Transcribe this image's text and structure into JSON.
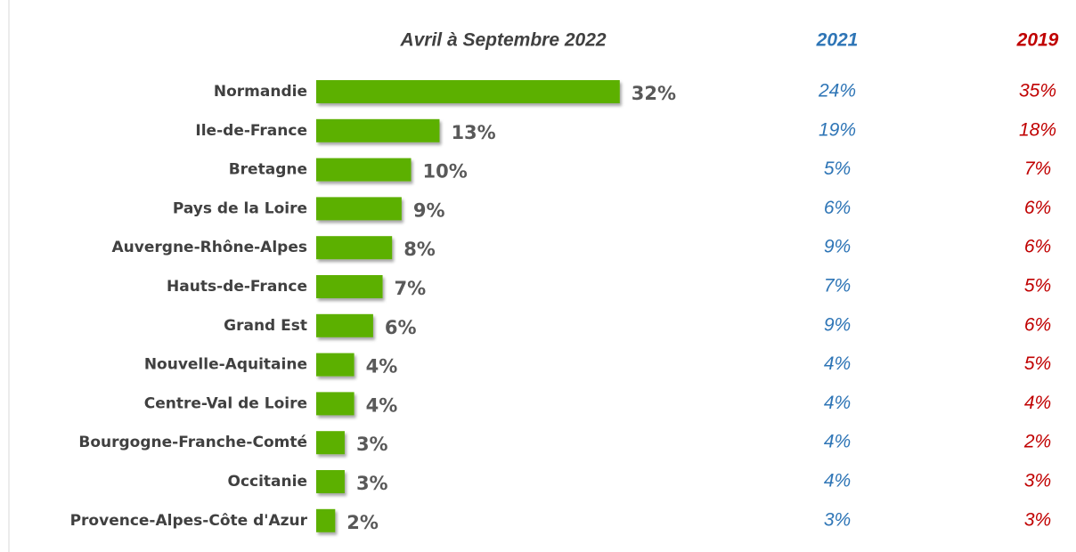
{
  "chart_data": {
    "type": "bar",
    "orientation": "horizontal",
    "title": "Avril à Septembre 2022",
    "categories": [
      "Normandie",
      "Ile-de-France",
      "Bretagne",
      "Pays de la Loire",
      "Auvergne-Rhône-Alpes",
      "Hauts-de-France",
      "Grand Est",
      "Nouvelle-Aquitaine",
      "Centre-Val de Loire",
      "Bourgogne-Franche-Comté",
      "Occitanie",
      "Provence-Alpes-Côte d'Azur"
    ],
    "values": [
      32,
      13,
      10,
      9,
      8,
      7,
      6,
      4,
      4,
      3,
      3,
      2
    ],
    "value_labels": [
      "32%",
      "13%",
      "10%",
      "9%",
      "8%",
      "7%",
      "6%",
      "4%",
      "4%",
      "3%",
      "3%",
      "2%"
    ],
    "color": "#5cb000",
    "columns": [
      {
        "name": "2021",
        "color": "#2e75b6",
        "labels": [
          "24%",
          "19%",
          "5%",
          "6%",
          "9%",
          "7%",
          "9%",
          "4%",
          "4%",
          "4%",
          "4%",
          "3%"
        ]
      },
      {
        "name": "2019",
        "color": "#c00000",
        "labels": [
          "35%",
          "18%",
          "7%",
          "6%",
          "6%",
          "5%",
          "6%",
          "5%",
          "4%",
          "2%",
          "3%",
          "3%"
        ]
      }
    ]
  }
}
